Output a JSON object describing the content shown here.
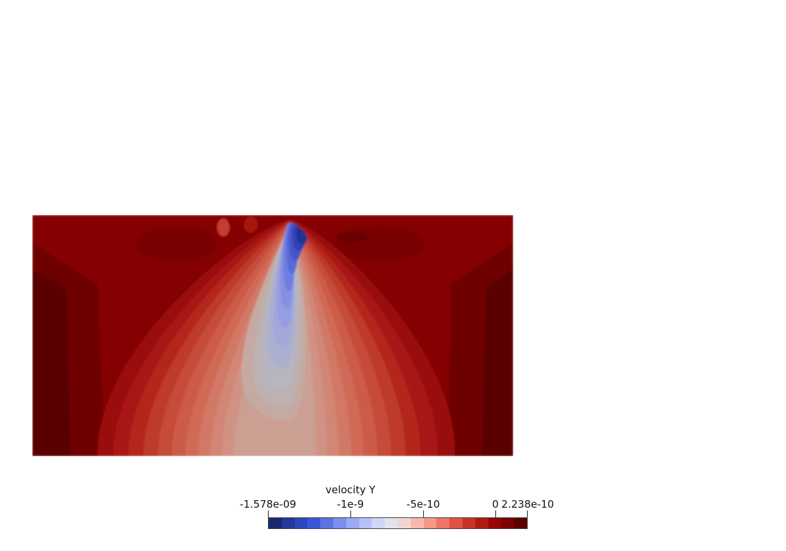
{
  "colorbar": {
    "title": "velocity Y",
    "labels": {
      "min": "-1.578e-09",
      "t1": "-1e-9",
      "t2": "-5e-10",
      "zero": "0",
      "max": "2.238e-10"
    },
    "range": [
      -1.578e-09,
      2.238e-10
    ],
    "tick_values": [
      -1.578e-09,
      -1e-09,
      -5e-10,
      0,
      2.238e-10
    ]
  },
  "colors": {
    "background": "#ffffff",
    "low": "#1a2870",
    "mid": "#dddddd",
    "high": "#5a0000"
  },
  "colormap": [
    "#1a2870",
    "#233898",
    "#2c47bb",
    "#3a57d6",
    "#5a73e3",
    "#7b8eec",
    "#9aa9f2",
    "#b6c2f5",
    "#cfd6f6",
    "#e2e3ee",
    "#f0d6d2",
    "#f6b9ad",
    "#f6978a",
    "#ee7566",
    "#de5444",
    "#c83526",
    "#b01a10",
    "#960605",
    "#7c0203",
    "#5e0000"
  ]
}
